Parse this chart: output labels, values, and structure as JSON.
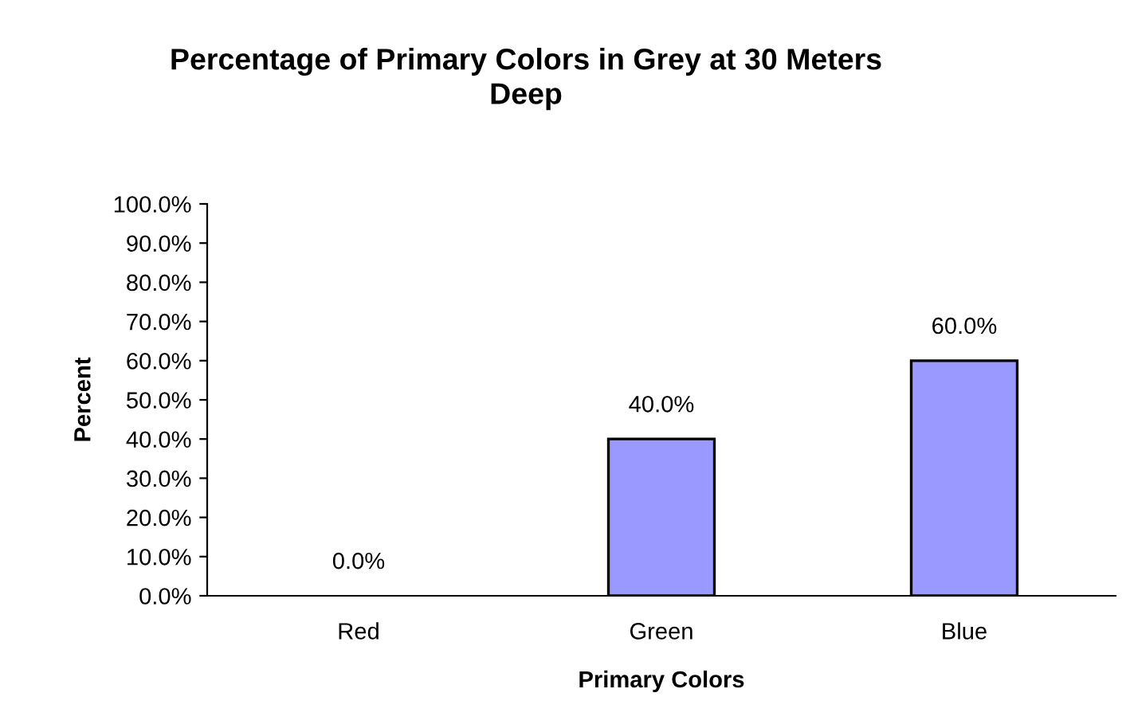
{
  "chart_data": {
    "type": "bar",
    "title": "Percentage of Primary Colors in Grey at 30 Meters Deep",
    "xlabel": "Primary Colors",
    "ylabel": "Percent",
    "categories": [
      "Red",
      "Green",
      "Blue"
    ],
    "values": [
      0,
      40,
      60
    ],
    "value_labels": [
      "0.0%",
      "40.0%",
      "60.0%"
    ],
    "color": "#9999ff",
    "ylim": [
      0,
      100
    ],
    "yticks": [
      {
        "value": 0,
        "label": "0.0%"
      },
      {
        "value": 10,
        "label": "10.0%"
      },
      {
        "value": 20,
        "label": "20.0%"
      },
      {
        "value": 30,
        "label": "30.0%"
      },
      {
        "value": 40,
        "label": "40.0%"
      },
      {
        "value": 50,
        "label": "50.0%"
      },
      {
        "value": 60,
        "label": "60.0%"
      },
      {
        "value": 70,
        "label": "70.0%"
      },
      {
        "value": 80,
        "label": "80.0%"
      },
      {
        "value": 90,
        "label": "90.0%"
      },
      {
        "value": 100,
        "label": "100.0%"
      }
    ],
    "grid": false,
    "legend": false
  }
}
